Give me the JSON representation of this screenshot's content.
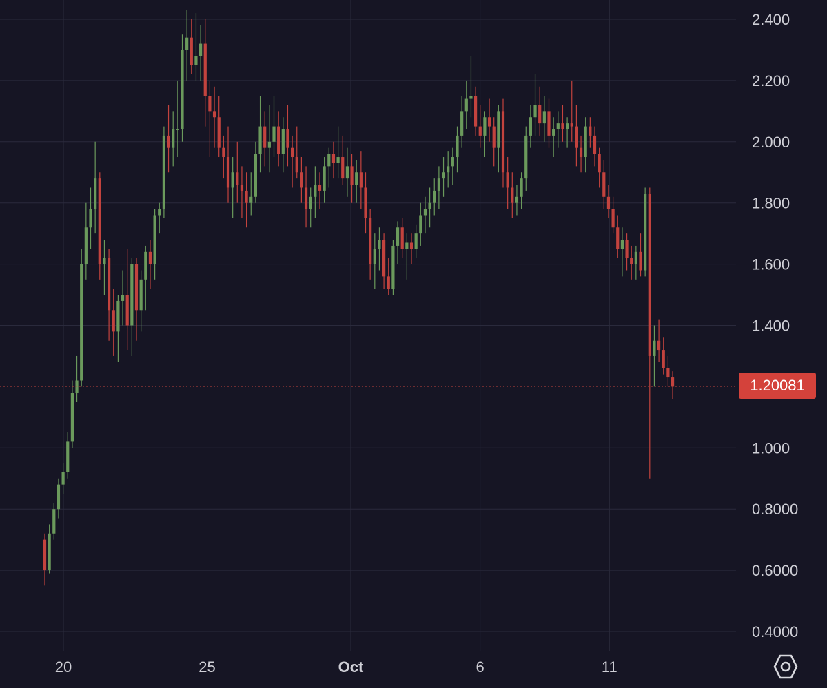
{
  "chart_data": {
    "type": "candlestick",
    "title": "",
    "xlabel": "",
    "ylabel": "",
    "ylim": [
      0.4,
      2.4
    ],
    "grid": true,
    "y_ticks": [
      {
        "value": 2.4,
        "label": "2.400"
      },
      {
        "value": 2.2,
        "label": "2.200"
      },
      {
        "value": 2.0,
        "label": "2.000"
      },
      {
        "value": 1.8,
        "label": "1.800"
      },
      {
        "value": 1.6,
        "label": "1.600"
      },
      {
        "value": 1.4,
        "label": "1.400"
      },
      {
        "value": 1.0,
        "label": "1.000"
      },
      {
        "value": 0.8,
        "label": "0.8000"
      },
      {
        "value": 0.6,
        "label": "0.6000"
      },
      {
        "value": 0.4,
        "label": "0.4000"
      }
    ],
    "x_ticks": [
      {
        "day": 0,
        "label": "20",
        "bold": false
      },
      {
        "day": 5,
        "label": "25",
        "bold": false
      },
      {
        "day": 10,
        "label": "Oct",
        "bold": true
      },
      {
        "day": 14.5,
        "label": "6",
        "bold": false
      },
      {
        "day": 19,
        "label": "11",
        "bold": false
      }
    ],
    "last_price": 1.20081,
    "last_price_label": "1.20081",
    "candles": [
      [
        0.7,
        0.72,
        0.55,
        0.6
      ],
      [
        0.6,
        0.75,
        0.59,
        0.72
      ],
      [
        0.72,
        0.82,
        0.7,
        0.8
      ],
      [
        0.8,
        0.9,
        0.77,
        0.88
      ],
      [
        0.88,
        0.95,
        0.85,
        0.92
      ],
      [
        0.92,
        1.05,
        0.9,
        1.02
      ],
      [
        1.02,
        1.22,
        1.0,
        1.18
      ],
      [
        1.18,
        1.3,
        1.15,
        1.22
      ],
      [
        1.22,
        1.65,
        1.2,
        1.6
      ],
      [
        1.6,
        1.8,
        1.55,
        1.72
      ],
      [
        1.72,
        1.85,
        1.65,
        1.78
      ],
      [
        1.78,
        2.0,
        1.7,
        1.88
      ],
      [
        1.88,
        1.9,
        1.55,
        1.6
      ],
      [
        1.6,
        1.68,
        1.5,
        1.62
      ],
      [
        1.62,
        1.65,
        1.35,
        1.45
      ],
      [
        1.45,
        1.52,
        1.3,
        1.38
      ],
      [
        1.38,
        1.5,
        1.28,
        1.48
      ],
      [
        1.48,
        1.58,
        1.4,
        1.5
      ],
      [
        1.5,
        1.65,
        1.32,
        1.4
      ],
      [
        1.4,
        1.62,
        1.3,
        1.6
      ],
      [
        1.6,
        1.62,
        1.35,
        1.45
      ],
      [
        1.45,
        1.58,
        1.38,
        1.55
      ],
      [
        1.55,
        1.66,
        1.45,
        1.64
      ],
      [
        1.64,
        1.68,
        1.52,
        1.6
      ],
      [
        1.6,
        1.78,
        1.55,
        1.76
      ],
      [
        1.76,
        1.8,
        1.7,
        1.78
      ],
      [
        1.78,
        2.05,
        1.75,
        2.02
      ],
      [
        2.02,
        2.12,
        1.9,
        1.98
      ],
      [
        1.98,
        2.1,
        1.92,
        2.04
      ],
      [
        2.04,
        2.2,
        1.95,
        2.04
      ],
      [
        2.04,
        2.35,
        2.0,
        2.3
      ],
      [
        2.3,
        2.43,
        2.2,
        2.34
      ],
      [
        2.34,
        2.4,
        2.22,
        2.25
      ],
      [
        2.25,
        2.42,
        2.2,
        2.28
      ],
      [
        2.28,
        2.38,
        2.2,
        2.32
      ],
      [
        2.32,
        2.4,
        2.05,
        2.15
      ],
      [
        2.15,
        2.2,
        1.95,
        2.1
      ],
      [
        2.1,
        2.18,
        1.98,
        2.08
      ],
      [
        2.08,
        2.15,
        1.95,
        1.98
      ],
      [
        1.98,
        2.02,
        1.88,
        1.95
      ],
      [
        1.95,
        2.05,
        1.8,
        1.85
      ],
      [
        1.85,
        1.95,
        1.75,
        1.9
      ],
      [
        1.9,
        2.0,
        1.8,
        1.86
      ],
      [
        1.86,
        1.92,
        1.75,
        1.84
      ],
      [
        1.84,
        1.9,
        1.72,
        1.8
      ],
      [
        1.8,
        1.9,
        1.76,
        1.82
      ],
      [
        1.82,
        2.0,
        1.8,
        1.96
      ],
      [
        1.96,
        2.15,
        1.9,
        2.05
      ],
      [
        2.05,
        2.1,
        1.92,
        1.98
      ],
      [
        1.98,
        2.12,
        1.9,
        2.0
      ],
      [
        2.0,
        2.15,
        1.95,
        2.05
      ],
      [
        2.05,
        2.1,
        1.92,
        1.96
      ],
      [
        1.96,
        2.08,
        1.9,
        2.04
      ],
      [
        2.04,
        2.12,
        1.92,
        1.98
      ],
      [
        1.98,
        2.02,
        1.85,
        1.95
      ],
      [
        1.95,
        2.05,
        1.88,
        1.9
      ],
      [
        1.9,
        1.95,
        1.8,
        1.85
      ],
      [
        1.85,
        1.92,
        1.72,
        1.78
      ],
      [
        1.78,
        1.85,
        1.72,
        1.82
      ],
      [
        1.82,
        1.92,
        1.75,
        1.86
      ],
      [
        1.86,
        1.9,
        1.78,
        1.84
      ],
      [
        1.84,
        1.95,
        1.8,
        1.92
      ],
      [
        1.92,
        1.98,
        1.85,
        1.96
      ],
      [
        1.96,
        2.0,
        1.88,
        1.93
      ],
      [
        1.93,
        2.05,
        1.88,
        1.95
      ],
      [
        1.95,
        2.02,
        1.86,
        1.88
      ],
      [
        1.88,
        1.98,
        1.82,
        1.92
      ],
      [
        1.92,
        1.96,
        1.8,
        1.86
      ],
      [
        1.86,
        1.94,
        1.8,
        1.9
      ],
      [
        1.9,
        1.97,
        1.78,
        1.85
      ],
      [
        1.85,
        1.9,
        1.7,
        1.75
      ],
      [
        1.75,
        1.78,
        1.55,
        1.6
      ],
      [
        1.6,
        1.7,
        1.52,
        1.65
      ],
      [
        1.65,
        1.72,
        1.58,
        1.68
      ],
      [
        1.68,
        1.7,
        1.52,
        1.56
      ],
      [
        1.56,
        1.62,
        1.5,
        1.52
      ],
      [
        1.52,
        1.68,
        1.5,
        1.66
      ],
      [
        1.66,
        1.74,
        1.6,
        1.72
      ],
      [
        1.72,
        1.75,
        1.62,
        1.65
      ],
      [
        1.65,
        1.7,
        1.55,
        1.67
      ],
      [
        1.67,
        1.7,
        1.6,
        1.65
      ],
      [
        1.65,
        1.73,
        1.62,
        1.7
      ],
      [
        1.7,
        1.8,
        1.66,
        1.76
      ],
      [
        1.76,
        1.82,
        1.7,
        1.78
      ],
      [
        1.78,
        1.85,
        1.72,
        1.8
      ],
      [
        1.8,
        1.88,
        1.76,
        1.84
      ],
      [
        1.84,
        1.92,
        1.78,
        1.88
      ],
      [
        1.88,
        1.95,
        1.82,
        1.9
      ],
      [
        1.9,
        1.97,
        1.85,
        1.92
      ],
      [
        1.92,
        1.98,
        1.86,
        1.95
      ],
      [
        1.95,
        2.05,
        1.9,
        2.02
      ],
      [
        2.02,
        2.15,
        1.98,
        2.1
      ],
      [
        2.1,
        2.2,
        2.04,
        2.14
      ],
      [
        2.14,
        2.28,
        2.08,
        2.15
      ],
      [
        2.15,
        2.18,
        2.02,
        2.05
      ],
      [
        2.05,
        2.12,
        1.98,
        2.02
      ],
      [
        2.02,
        2.1,
        1.95,
        2.08
      ],
      [
        2.08,
        2.14,
        2.0,
        2.05
      ],
      [
        2.05,
        2.08,
        1.92,
        1.98
      ],
      [
        1.98,
        2.12,
        1.9,
        2.1
      ],
      [
        2.1,
        2.14,
        1.85,
        1.9
      ],
      [
        1.9,
        1.95,
        1.78,
        1.85
      ],
      [
        1.85,
        1.9,
        1.75,
        1.8
      ],
      [
        1.8,
        1.86,
        1.76,
        1.82
      ],
      [
        1.82,
        1.9,
        1.78,
        1.88
      ],
      [
        1.88,
        2.05,
        1.84,
        2.02
      ],
      [
        2.02,
        2.12,
        1.98,
        2.08
      ],
      [
        2.08,
        2.22,
        2.02,
        2.12
      ],
      [
        2.12,
        2.18,
        2.02,
        2.06
      ],
      [
        2.06,
        2.15,
        2.0,
        2.1
      ],
      [
        2.1,
        2.14,
        1.98,
        2.02
      ],
      [
        2.02,
        2.08,
        1.95,
        2.04
      ],
      [
        2.04,
        2.1,
        1.98,
        2.06
      ],
      [
        2.06,
        2.12,
        2.0,
        2.04
      ],
      [
        2.04,
        2.08,
        1.98,
        2.06
      ],
      [
        2.06,
        2.2,
        2.0,
        2.05
      ],
      [
        2.05,
        2.12,
        1.92,
        1.98
      ],
      [
        1.98,
        2.02,
        1.9,
        1.95
      ],
      [
        1.95,
        2.08,
        1.9,
        2.05
      ],
      [
        2.05,
        2.08,
        1.98,
        2.02
      ],
      [
        2.02,
        2.05,
        1.92,
        1.96
      ],
      [
        1.96,
        1.98,
        1.85,
        1.9
      ],
      [
        1.9,
        1.94,
        1.78,
        1.82
      ],
      [
        1.82,
        1.86,
        1.75,
        1.78
      ],
      [
        1.78,
        1.82,
        1.7,
        1.72
      ],
      [
        1.72,
        1.76,
        1.62,
        1.65
      ],
      [
        1.65,
        1.72,
        1.56,
        1.68
      ],
      [
        1.68,
        1.7,
        1.58,
        1.62
      ],
      [
        1.62,
        1.66,
        1.55,
        1.6
      ],
      [
        1.6,
        1.66,
        1.55,
        1.64
      ],
      [
        1.64,
        1.7,
        1.56,
        1.58
      ],
      [
        1.58,
        1.85,
        1.56,
        1.83
      ],
      [
        1.83,
        1.85,
        0.9,
        1.3
      ],
      [
        1.3,
        1.4,
        1.2,
        1.35
      ],
      [
        1.35,
        1.42,
        1.28,
        1.32
      ],
      [
        1.32,
        1.36,
        1.24,
        1.26
      ],
      [
        1.26,
        1.3,
        1.2,
        1.23
      ],
      [
        1.23,
        1.25,
        1.16,
        1.2
      ]
    ]
  },
  "colors": {
    "background": "#161524",
    "grid": "#2a2a3c",
    "up": "#6b9a5c",
    "down": "#c3433e",
    "axis_text": "#cfcfd6",
    "price_line": "#c3433e",
    "price_label_bg": "#d4423b"
  },
  "settings_icon": "gear-hexagon-icon"
}
